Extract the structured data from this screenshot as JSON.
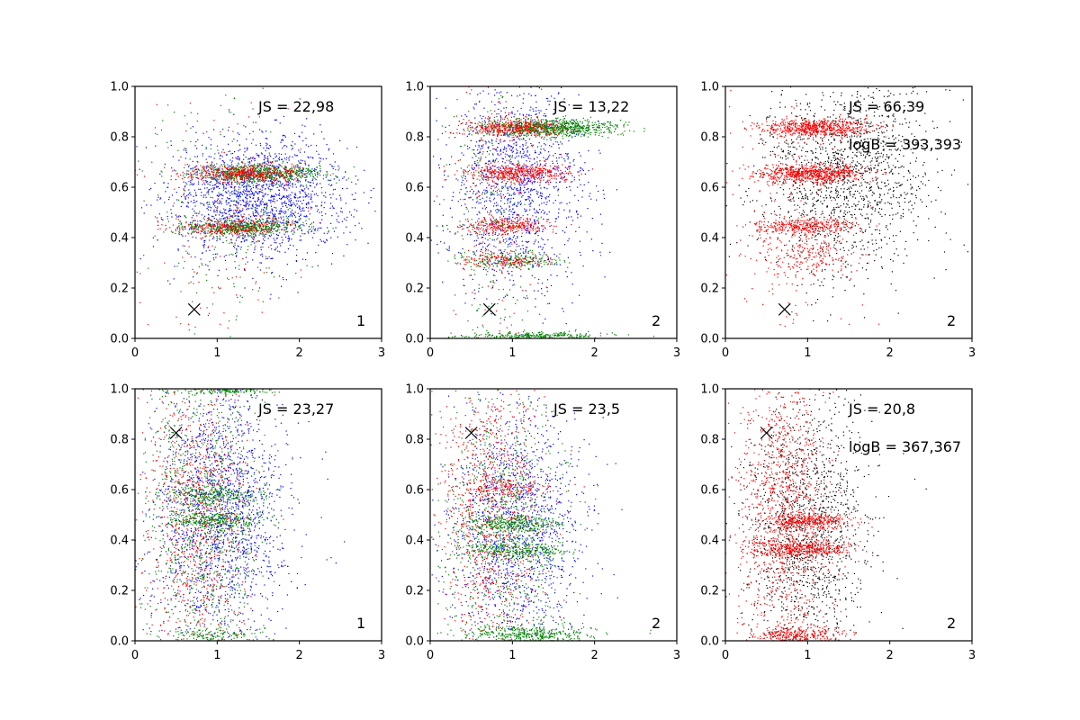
{
  "colors": {
    "blue": "#0000ff",
    "green": "#008000",
    "red": "#ff0000",
    "black": "#000000"
  },
  "chart_data": [
    {
      "type": "scatter",
      "xlim": [
        0,
        3
      ],
      "ylim": [
        0,
        1
      ],
      "xticks": [
        "0",
        "1",
        "2",
        "3"
      ],
      "yticks": [
        "0.0",
        "0.2",
        "0.4",
        "0.6",
        "0.8",
        "1.0"
      ],
      "js_label": "JS = 22,98",
      "logb_label": "",
      "corner_label": "1",
      "marker": {
        "x": 0.72,
        "y": 0.115
      },
      "clusters": [
        {
          "color": "blue",
          "n": 1700,
          "cx": 1.5,
          "sx": 0.55,
          "cy": 0.56,
          "sy": 0.12
        },
        {
          "color": "green",
          "n": 700,
          "cx": 1.5,
          "sx": 0.38,
          "cy": 0.655,
          "sy": 0.018
        },
        {
          "color": "red",
          "n": 450,
          "cx": 1.35,
          "sx": 0.35,
          "cy": 0.655,
          "sy": 0.018
        },
        {
          "color": "green",
          "n": 500,
          "cx": 1.3,
          "sx": 0.38,
          "cy": 0.44,
          "sy": 0.016
        },
        {
          "color": "red",
          "n": 300,
          "cx": 1.2,
          "sx": 0.35,
          "cy": 0.44,
          "sy": 0.016
        },
        {
          "color": "green",
          "n": 250,
          "cx": 1.1,
          "sx": 0.5,
          "cy": 0.5,
          "sy": 0.25
        },
        {
          "color": "red",
          "n": 200,
          "cx": 1.0,
          "sx": 0.5,
          "cy": 0.5,
          "sy": 0.25
        }
      ]
    },
    {
      "type": "scatter",
      "xlim": [
        0,
        3
      ],
      "ylim": [
        0,
        1
      ],
      "xticks": [
        "0",
        "1",
        "2",
        "3"
      ],
      "yticks": [
        "0.0",
        "0.2",
        "0.4",
        "0.6",
        "0.8",
        "1.0"
      ],
      "js_label": "JS = 13,22",
      "logb_label": "",
      "corner_label": "2",
      "marker": {
        "x": 0.72,
        "y": 0.115
      },
      "clusters": [
        {
          "color": "blue",
          "n": 1300,
          "cx": 1.05,
          "sx": 0.42,
          "cy": 0.6,
          "sy": 0.22
        },
        {
          "color": "green",
          "n": 900,
          "cx": 1.45,
          "sx": 0.42,
          "cy": 0.835,
          "sy": 0.018
        },
        {
          "color": "red",
          "n": 400,
          "cx": 1.0,
          "sx": 0.3,
          "cy": 0.835,
          "sy": 0.018
        },
        {
          "color": "red",
          "n": 500,
          "cx": 1.1,
          "sx": 0.3,
          "cy": 0.655,
          "sy": 0.018
        },
        {
          "color": "red",
          "n": 300,
          "cx": 0.95,
          "sx": 0.28,
          "cy": 0.445,
          "sy": 0.016
        },
        {
          "color": "green",
          "n": 200,
          "cx": 1.0,
          "sx": 0.3,
          "cy": 0.31,
          "sy": 0.016
        },
        {
          "color": "red",
          "n": 150,
          "cx": 0.9,
          "sx": 0.25,
          "cy": 0.31,
          "sy": 0.016
        },
        {
          "color": "green",
          "n": 300,
          "cx": 1.3,
          "sx": 0.45,
          "cy": 0.01,
          "sy": 0.008
        },
        {
          "color": "green",
          "n": 250,
          "cx": 0.8,
          "sx": 0.3,
          "cy": 0.5,
          "sy": 0.3
        },
        {
          "color": "red",
          "n": 200,
          "cx": 0.8,
          "sx": 0.3,
          "cy": 0.5,
          "sy": 0.3
        }
      ]
    },
    {
      "type": "scatter",
      "xlim": [
        0,
        3
      ],
      "ylim": [
        0,
        1
      ],
      "xticks": [
        "0",
        "1",
        "2",
        "3"
      ],
      "yticks": [
        "0.0",
        "0.2",
        "0.4",
        "0.6",
        "0.8",
        "1.0"
      ],
      "js_label": "JS = 66,39",
      "logb_label": "logB = 393,393",
      "corner_label": "2",
      "marker": {
        "x": 0.72,
        "y": 0.115
      },
      "clusters": [
        {
          "color": "black",
          "n": 1500,
          "cx": 1.45,
          "sx": 0.55,
          "cy": 0.65,
          "sy": 0.2
        },
        {
          "color": "red",
          "n": 650,
          "cx": 1.1,
          "sx": 0.32,
          "cy": 0.835,
          "sy": 0.018
        },
        {
          "color": "red",
          "n": 700,
          "cx": 1.05,
          "sx": 0.32,
          "cy": 0.655,
          "sy": 0.018
        },
        {
          "color": "red",
          "n": 350,
          "cx": 1.0,
          "sx": 0.3,
          "cy": 0.445,
          "sy": 0.016
        },
        {
          "color": "red",
          "n": 200,
          "cx": 1.0,
          "sx": 0.3,
          "cy": 0.33,
          "sy": 0.04
        },
        {
          "color": "red",
          "n": 200,
          "cx": 0.8,
          "sx": 0.35,
          "cy": 0.45,
          "sy": 0.3
        }
      ]
    },
    {
      "type": "scatter",
      "xlim": [
        0,
        3
      ],
      "ylim": [
        0,
        1
      ],
      "xticks": [
        "0",
        "1",
        "2",
        "3"
      ],
      "yticks": [
        "0.0",
        "0.2",
        "0.4",
        "0.6",
        "0.8",
        "1.0"
      ],
      "js_label": "JS = 23,27",
      "logb_label": "",
      "corner_label": "1",
      "marker": {
        "x": 0.5,
        "y": 0.825
      },
      "clusters": [
        {
          "color": "blue",
          "n": 1700,
          "cx": 1.05,
          "sx": 0.42,
          "cy": 0.5,
          "sy": 0.26
        },
        {
          "color": "green",
          "n": 1000,
          "cx": 0.8,
          "sx": 0.35,
          "cy": 0.5,
          "sy": 0.28
        },
        {
          "color": "red",
          "n": 900,
          "cx": 0.75,
          "sx": 0.33,
          "cy": 0.5,
          "sy": 0.28
        },
        {
          "color": "green",
          "n": 250,
          "cx": 1.0,
          "sx": 0.3,
          "cy": 0.48,
          "sy": 0.016
        },
        {
          "color": "green",
          "n": 200,
          "cx": 1.0,
          "sx": 0.3,
          "cy": 0.58,
          "sy": 0.016
        },
        {
          "color": "green",
          "n": 200,
          "cx": 1.0,
          "sx": 0.35,
          "cy": 0.995,
          "sy": 0.008
        },
        {
          "color": "green",
          "n": 150,
          "cx": 1.0,
          "sx": 0.3,
          "cy": 0.02,
          "sy": 0.015
        }
      ]
    },
    {
      "type": "scatter",
      "xlim": [
        0,
        3
      ],
      "ylim": [
        0,
        1
      ],
      "xticks": [
        "0",
        "1",
        "2",
        "3"
      ],
      "yticks": [
        "0.0",
        "0.2",
        "0.4",
        "0.6",
        "0.8",
        "1.0"
      ],
      "js_label": "JS = 23,5",
      "logb_label": "",
      "corner_label": "2",
      "marker": {
        "x": 0.5,
        "y": 0.825
      },
      "clusters": [
        {
          "color": "blue",
          "n": 1300,
          "cx": 1.05,
          "sx": 0.42,
          "cy": 0.45,
          "sy": 0.24
        },
        {
          "color": "green",
          "n": 900,
          "cx": 0.85,
          "sx": 0.38,
          "cy": 0.45,
          "sy": 0.28
        },
        {
          "color": "red",
          "n": 900,
          "cx": 0.75,
          "sx": 0.32,
          "cy": 0.5,
          "sy": 0.3
        },
        {
          "color": "green",
          "n": 300,
          "cx": 1.05,
          "sx": 0.3,
          "cy": 0.465,
          "sy": 0.016
        },
        {
          "color": "green",
          "n": 300,
          "cx": 1.05,
          "sx": 0.3,
          "cy": 0.36,
          "sy": 0.016
        },
        {
          "color": "green",
          "n": 400,
          "cx": 1.15,
          "sx": 0.38,
          "cy": 0.025,
          "sy": 0.018
        },
        {
          "color": "red",
          "n": 150,
          "cx": 0.9,
          "sx": 0.3,
          "cy": 0.6,
          "sy": 0.016
        }
      ]
    },
    {
      "type": "scatter",
      "xlim": [
        0,
        3
      ],
      "ylim": [
        0,
        1
      ],
      "xticks": [
        "0",
        "1",
        "2",
        "3"
      ],
      "yticks": [
        "0.0",
        "0.2",
        "0.4",
        "0.6",
        "0.8",
        "1.0"
      ],
      "js_label": "JS = 20,8",
      "logb_label": "logB = 367,367",
      "corner_label": "2",
      "marker": {
        "x": 0.5,
        "y": 0.825
      },
      "clusters": [
        {
          "color": "black",
          "n": 1400,
          "cx": 1.0,
          "sx": 0.38,
          "cy": 0.45,
          "sy": 0.27
        },
        {
          "color": "red",
          "n": 1200,
          "cx": 0.72,
          "sx": 0.28,
          "cy": 0.5,
          "sy": 0.3
        },
        {
          "color": "red",
          "n": 350,
          "cx": 1.0,
          "sx": 0.28,
          "cy": 0.475,
          "sy": 0.016
        },
        {
          "color": "red",
          "n": 400,
          "cx": 0.95,
          "sx": 0.3,
          "cy": 0.365,
          "sy": 0.016
        },
        {
          "color": "red",
          "n": 300,
          "cx": 0.9,
          "sx": 0.28,
          "cy": 0.02,
          "sy": 0.018
        }
      ]
    }
  ]
}
